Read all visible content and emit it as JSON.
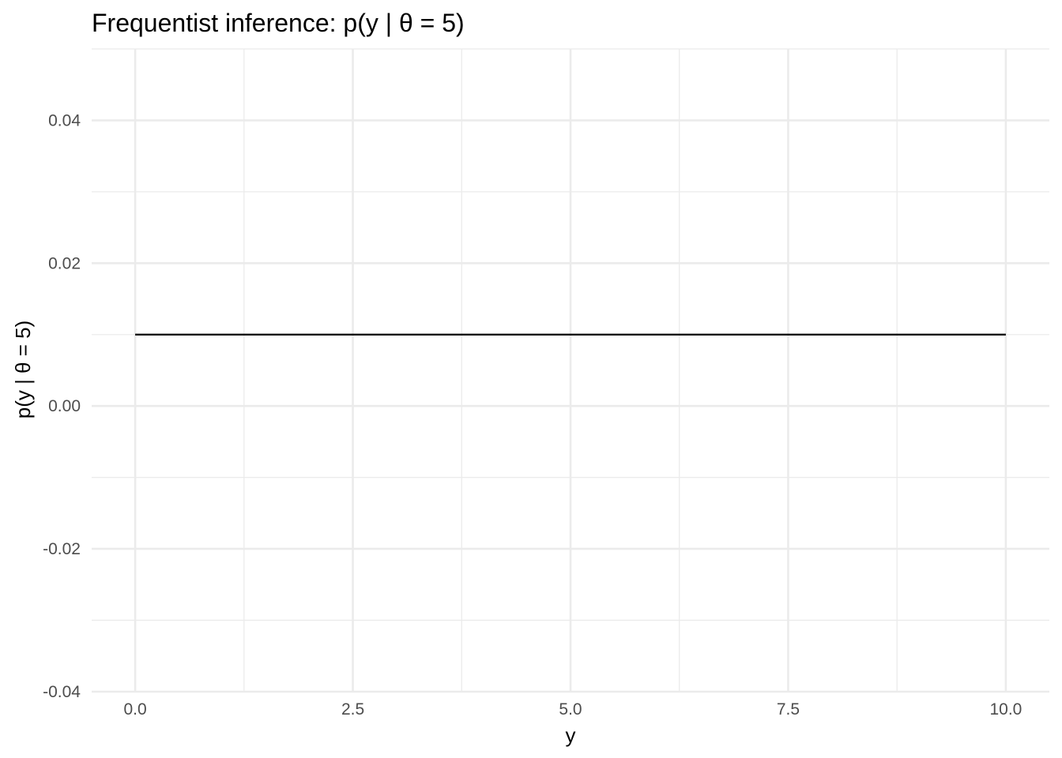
{
  "chart_data": {
    "type": "line",
    "title": "Frequentist inference: p(y | θ = 5)",
    "xlabel": "y",
    "ylabel": "p(y | θ = 5)",
    "xlim": [
      -0.5,
      10.5
    ],
    "ylim": [
      -0.04,
      0.05
    ],
    "x_ticks": [
      0,
      2.5,
      5,
      7.5,
      10
    ],
    "x_tick_labels": [
      "0.0",
      "2.5",
      "5.0",
      "7.5",
      "10.0"
    ],
    "y_ticks": [
      -0.04,
      -0.02,
      0,
      0.02,
      0.04
    ],
    "y_tick_labels": [
      "-0.04",
      "-0.02",
      "0.00",
      "0.02",
      "0.04"
    ],
    "grid": true,
    "legend": "none",
    "series": [
      {
        "color": "#000000",
        "x": [
          0,
          10
        ],
        "y": [
          0.01,
          0.01
        ]
      }
    ]
  }
}
